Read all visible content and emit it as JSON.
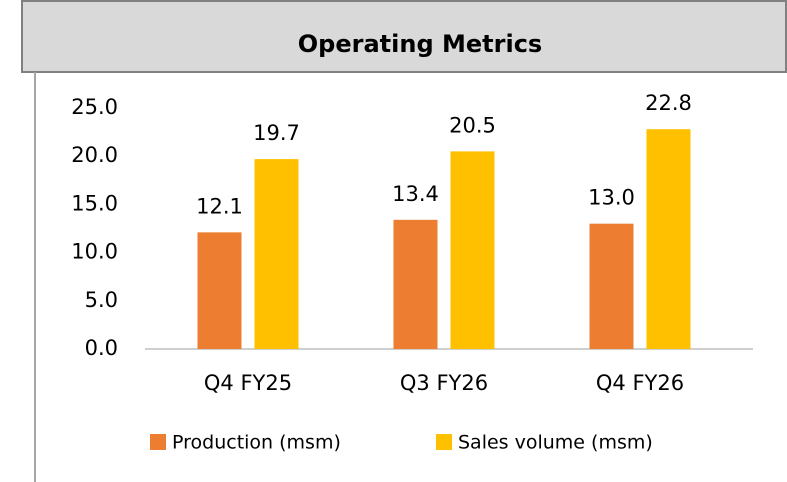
{
  "chart_data": {
    "type": "bar",
    "title": "Operating Metrics",
    "categories": [
      "Q4 FY25",
      "Q3 FY26",
      "Q4 FY26"
    ],
    "series": [
      {
        "name": "Production (msm)",
        "color": "#ed7d31",
        "values": [
          12.1,
          13.4,
          13.0
        ],
        "value_labels": [
          "12.1",
          "13.4",
          "13.0"
        ]
      },
      {
        "name": "Sales volume (msm)",
        "color": "#ffc000",
        "values": [
          19.7,
          20.5,
          22.8
        ],
        "value_labels": [
          "19.7",
          "20.5",
          "22.8"
        ]
      }
    ],
    "ylim": [
      0,
      25
    ],
    "yticks": [
      {
        "value": 0,
        "label": "0.0"
      },
      {
        "value": 5,
        "label": "5.0"
      },
      {
        "value": 10,
        "label": "10.0"
      },
      {
        "value": 15,
        "label": "15.0"
      },
      {
        "value": 20,
        "label": "20.0"
      },
      {
        "value": 25,
        "label": "25.0"
      }
    ],
    "grid": false,
    "legend": "bottom"
  }
}
